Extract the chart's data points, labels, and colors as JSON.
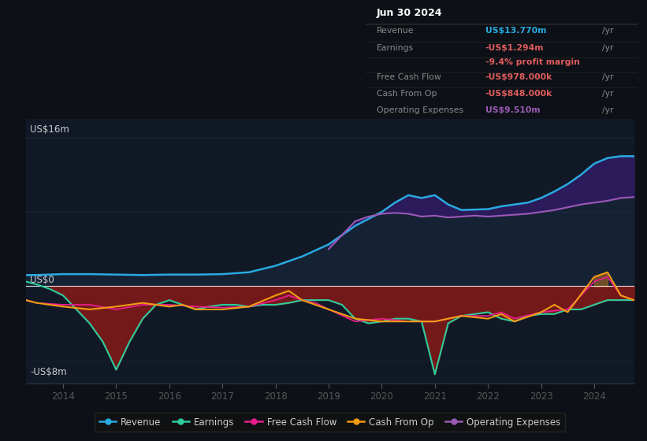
{
  "background_color": "#0d1117",
  "plot_bg_color": "#111927",
  "title_box": {
    "date": "Jun 30 2024",
    "rows": [
      {
        "label": "Revenue",
        "value": "US$13.770m",
        "suffix": " /yr",
        "value_color": "#29aae1"
      },
      {
        "label": "Earnings",
        "value": "-US$1.294m",
        "suffix": " /yr",
        "value_color": "#e05c5c"
      },
      {
        "label": "",
        "value": "-9.4% profit margin",
        "suffix": "",
        "value_color": "#e05c5c"
      },
      {
        "label": "Free Cash Flow",
        "value": "-US$978.000k",
        "suffix": " /yr",
        "value_color": "#e05c5c"
      },
      {
        "label": "Cash From Op",
        "value": "-US$848.000k",
        "suffix": " /yr",
        "value_color": "#e05c5c"
      },
      {
        "label": "Operating Expenses",
        "value": "US$9.510m",
        "suffix": " /yr",
        "value_color": "#9b59b6"
      }
    ]
  },
  "ylim": [
    -10.5,
    18
  ],
  "ylabel_16m": "US$16m",
  "ylabel_0": "US$0",
  "ylabel_m8": "-US$8m",
  "xmin": 2013.3,
  "xmax": 2024.75,
  "legend_items": [
    {
      "label": "Revenue",
      "color": "#29aae1"
    },
    {
      "label": "Earnings",
      "color": "#2ecc9a"
    },
    {
      "label": "Free Cash Flow",
      "color": "#e91e8c"
    },
    {
      "label": "Cash From Op",
      "color": "#f39c12"
    },
    {
      "label": "Operating Expenses",
      "color": "#9b59b6"
    }
  ],
  "revenue_x": [
    2013.3,
    2013.5,
    2014.0,
    2014.5,
    2015.0,
    2015.5,
    2016.0,
    2016.5,
    2017.0,
    2017.5,
    2018.0,
    2018.5,
    2019.0,
    2019.25,
    2019.5,
    2020.0,
    2020.25,
    2020.5,
    2020.75,
    2021.0,
    2021.25,
    2021.5,
    2022.0,
    2022.25,
    2022.5,
    2022.75,
    2023.0,
    2023.25,
    2023.5,
    2023.75,
    2024.0,
    2024.25,
    2024.5,
    2024.75
  ],
  "revenue_y": [
    1.2,
    1.2,
    1.3,
    1.3,
    1.25,
    1.2,
    1.25,
    1.25,
    1.3,
    1.5,
    2.2,
    3.2,
    4.5,
    5.5,
    6.5,
    8.0,
    9.0,
    9.8,
    9.5,
    9.8,
    8.8,
    8.2,
    8.3,
    8.6,
    8.8,
    9.0,
    9.5,
    10.2,
    11.0,
    12.0,
    13.2,
    13.8,
    14.0,
    14.0
  ],
  "op_exp_x": [
    2019.0,
    2019.25,
    2019.5,
    2019.75,
    2020.0,
    2020.25,
    2020.5,
    2020.75,
    2021.0,
    2021.25,
    2021.5,
    2021.75,
    2022.0,
    2022.25,
    2022.5,
    2022.75,
    2023.0,
    2023.25,
    2023.5,
    2023.75,
    2024.0,
    2024.25,
    2024.5,
    2024.75
  ],
  "op_exp_y": [
    4.0,
    5.5,
    7.0,
    7.5,
    7.8,
    7.9,
    7.8,
    7.5,
    7.6,
    7.4,
    7.5,
    7.6,
    7.5,
    7.6,
    7.7,
    7.8,
    8.0,
    8.2,
    8.5,
    8.8,
    9.0,
    9.2,
    9.5,
    9.6
  ],
  "earnings_x": [
    2013.3,
    2013.5,
    2013.75,
    2014.0,
    2014.25,
    2014.5,
    2014.75,
    2015.0,
    2015.25,
    2015.5,
    2015.75,
    2016.0,
    2016.25,
    2016.5,
    2016.75,
    2017.0,
    2017.25,
    2017.5,
    2017.75,
    2018.0,
    2018.25,
    2018.5,
    2018.75,
    2019.0,
    2019.25,
    2019.5,
    2019.75,
    2020.0,
    2020.25,
    2020.5,
    2020.75,
    2021.0,
    2021.25,
    2021.5,
    2021.75,
    2022.0,
    2022.25,
    2022.5,
    2022.75,
    2023.0,
    2023.25,
    2023.5,
    2023.75,
    2024.0,
    2024.25,
    2024.5,
    2024.75
  ],
  "earnings_y": [
    0.5,
    0.2,
    -0.3,
    -1.0,
    -2.5,
    -4.0,
    -6.0,
    -9.0,
    -6.0,
    -3.5,
    -2.0,
    -1.5,
    -2.0,
    -2.5,
    -2.2,
    -2.0,
    -2.0,
    -2.2,
    -2.0,
    -2.0,
    -1.8,
    -1.5,
    -1.5,
    -1.5,
    -2.0,
    -3.5,
    -4.0,
    -3.8,
    -3.5,
    -3.5,
    -3.8,
    -9.5,
    -4.0,
    -3.2,
    -3.0,
    -2.8,
    -3.5,
    -3.8,
    -3.2,
    -3.0,
    -3.0,
    -2.5,
    -2.5,
    -2.0,
    -1.5,
    -1.5,
    -1.5
  ],
  "fcf_x": [
    2013.3,
    2013.5,
    2014.0,
    2014.5,
    2015.0,
    2015.5,
    2016.0,
    2016.5,
    2017.0,
    2017.5,
    2018.0,
    2018.25,
    2018.5,
    2018.75,
    2019.0,
    2019.5,
    2020.0,
    2020.5,
    2021.0,
    2021.5,
    2022.0,
    2022.25,
    2022.5,
    2023.0,
    2023.5,
    2024.0,
    2024.25,
    2024.5,
    2024.75
  ],
  "fcf_y": [
    -1.5,
    -1.8,
    -2.0,
    -2.0,
    -2.5,
    -2.0,
    -2.0,
    -2.2,
    -2.3,
    -2.2,
    -1.5,
    -1.0,
    -1.5,
    -1.8,
    -2.5,
    -3.8,
    -3.5,
    -3.8,
    -3.8,
    -3.2,
    -3.2,
    -2.8,
    -3.5,
    -2.8,
    -2.5,
    0.5,
    1.0,
    -1.0,
    -1.5
  ],
  "cop_x": [
    2013.3,
    2013.5,
    2014.0,
    2014.5,
    2015.0,
    2015.5,
    2016.0,
    2016.25,
    2016.5,
    2017.0,
    2017.5,
    2018.0,
    2018.25,
    2018.5,
    2018.75,
    2019.0,
    2019.5,
    2020.0,
    2020.5,
    2021.0,
    2021.5,
    2022.0,
    2022.25,
    2022.5,
    2023.0,
    2023.25,
    2023.5,
    2024.0,
    2024.25,
    2024.5,
    2024.75
  ],
  "cop_y": [
    -1.5,
    -1.8,
    -2.2,
    -2.5,
    -2.2,
    -1.8,
    -2.2,
    -2.0,
    -2.5,
    -2.5,
    -2.2,
    -1.0,
    -0.5,
    -1.5,
    -2.0,
    -2.5,
    -3.5,
    -3.8,
    -3.8,
    -3.8,
    -3.2,
    -3.5,
    -3.0,
    -3.8,
    -2.8,
    -2.0,
    -2.8,
    1.0,
    1.5,
    -1.0,
    -1.5
  ],
  "revenue_fill_color": "#152234",
  "op_exp_fill_color": "#2d1b5e",
  "red_fill_color": "#7a1a1a",
  "orange_fill_color": "#c87820"
}
